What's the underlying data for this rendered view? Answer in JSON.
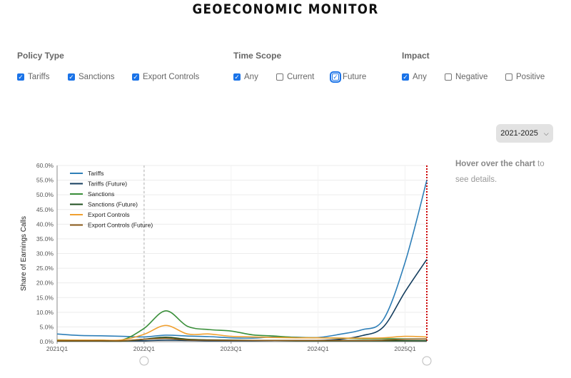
{
  "header": {
    "title": "GEOECONOMIC MONITOR"
  },
  "filters": {
    "policy_type": {
      "heading": "Policy Type",
      "options": [
        {
          "label": "Tariffs",
          "checked": true
        },
        {
          "label": "Sanctions",
          "checked": true
        },
        {
          "label": "Export Controls",
          "checked": true
        }
      ]
    },
    "time_scope": {
      "heading": "Time Scope",
      "options": [
        {
          "label": "Any",
          "checked": true
        },
        {
          "label": "Current",
          "checked": false
        },
        {
          "label": "Future",
          "checked": true
        }
      ]
    },
    "impact": {
      "heading": "Impact",
      "options": [
        {
          "label": "Any",
          "checked": true
        },
        {
          "label": "Negative",
          "checked": false
        },
        {
          "label": "Positive",
          "checked": false
        }
      ]
    }
  },
  "range_select": {
    "value": "2021-2025",
    "icon": "chevron-down-icon"
  },
  "hover_note": {
    "bold": "Hover over the chart",
    "rest": " to see details."
  },
  "chart_data": {
    "type": "line",
    "ylabel": "Share of Earnings Calls",
    "xlabel": "",
    "ylim": [
      0,
      60
    ],
    "y_ticks": [
      "0.0%",
      "5.0%",
      "10.0%",
      "15.0%",
      "20.0%",
      "25.0%",
      "30.0%",
      "35.0%",
      "40.0%",
      "45.0%",
      "50.0%",
      "55.0%",
      "60.0%"
    ],
    "x_ticks": [
      "2021Q1",
      "2022Q1",
      "2023Q1",
      "2024Q1",
      "2025Q1"
    ],
    "x_range": [
      "2021Q1",
      "2025Q2"
    ],
    "grid": true,
    "legend_position": "top-left",
    "reference_lines": [
      {
        "x": "2022Q1",
        "style": "dashed",
        "color": "#bbbbbb"
      },
      {
        "x": "2025Q2",
        "style": "dotted",
        "color": "#cc0000"
      }
    ],
    "series": [
      {
        "name": "Tariffs",
        "color": "#2e7fb8",
        "points": [
          [
            "2021Q1",
            2.6
          ],
          [
            "2021Q2",
            2.1
          ],
          [
            "2021Q3",
            2.0
          ],
          [
            "2021Q4",
            1.8
          ],
          [
            "2022Q1",
            1.6
          ],
          [
            "2022Q2",
            2.2
          ],
          [
            "2022Q3",
            1.9
          ],
          [
            "2022Q4",
            1.7
          ],
          [
            "2023Q1",
            1.3
          ],
          [
            "2023Q2",
            1.2
          ],
          [
            "2023Q3",
            1.6
          ],
          [
            "2023Q4",
            1.5
          ],
          [
            "2024Q1",
            1.4
          ],
          [
            "2024Q2",
            2.5
          ],
          [
            "2024Q3",
            4.0
          ],
          [
            "2024Q4",
            7.5
          ],
          [
            "2025Q1",
            27.0
          ],
          [
            "2025Q2",
            55.0
          ]
        ]
      },
      {
        "name": "Tariffs (Future)",
        "color": "#143d5e",
        "points": [
          [
            "2021Q1",
            0.4
          ],
          [
            "2021Q2",
            0.3
          ],
          [
            "2021Q3",
            0.3
          ],
          [
            "2021Q4",
            0.3
          ],
          [
            "2022Q1",
            0.3
          ],
          [
            "2022Q2",
            0.5
          ],
          [
            "2022Q3",
            0.4
          ],
          [
            "2022Q4",
            0.3
          ],
          [
            "2023Q1",
            0.3
          ],
          [
            "2023Q2",
            0.3
          ],
          [
            "2023Q3",
            0.4
          ],
          [
            "2023Q4",
            0.4
          ],
          [
            "2024Q1",
            0.4
          ],
          [
            "2024Q2",
            0.8
          ],
          [
            "2024Q3",
            2.0
          ],
          [
            "2024Q4",
            5.0
          ],
          [
            "2025Q1",
            17.0
          ],
          [
            "2025Q2",
            28.0
          ]
        ]
      },
      {
        "name": "Sanctions",
        "color": "#3a8f3a",
        "points": [
          [
            "2021Q1",
            0.6
          ],
          [
            "2021Q2",
            0.5
          ],
          [
            "2021Q3",
            0.5
          ],
          [
            "2021Q4",
            0.6
          ],
          [
            "2022Q1",
            4.5
          ],
          [
            "2022Q2",
            10.5
          ],
          [
            "2022Q3",
            5.2
          ],
          [
            "2022Q4",
            4.1
          ],
          [
            "2023Q1",
            3.6
          ],
          [
            "2023Q2",
            2.3
          ],
          [
            "2023Q3",
            1.9
          ],
          [
            "2023Q4",
            1.4
          ],
          [
            "2024Q1",
            1.3
          ],
          [
            "2024Q2",
            1.2
          ],
          [
            "2024Q3",
            1.0
          ],
          [
            "2024Q4",
            1.0
          ],
          [
            "2025Q1",
            0.9
          ],
          [
            "2025Q2",
            0.9
          ]
        ]
      },
      {
        "name": "Sanctions (Future)",
        "color": "#1e4d1e",
        "points": [
          [
            "2021Q1",
            0.2
          ],
          [
            "2021Q2",
            0.2
          ],
          [
            "2021Q3",
            0.2
          ],
          [
            "2021Q4",
            0.2
          ],
          [
            "2022Q1",
            0.8
          ],
          [
            "2022Q2",
            1.5
          ],
          [
            "2022Q3",
            0.8
          ],
          [
            "2022Q4",
            0.6
          ],
          [
            "2023Q1",
            0.5
          ],
          [
            "2023Q2",
            0.4
          ],
          [
            "2023Q3",
            0.4
          ],
          [
            "2023Q4",
            0.3
          ],
          [
            "2024Q1",
            0.3
          ],
          [
            "2024Q2",
            0.3
          ],
          [
            "2024Q3",
            0.3
          ],
          [
            "2024Q4",
            0.3
          ],
          [
            "2025Q1",
            0.3
          ],
          [
            "2025Q2",
            0.3
          ]
        ]
      },
      {
        "name": "Export Controls",
        "color": "#f0a030",
        "points": [
          [
            "2021Q1",
            0.5
          ],
          [
            "2021Q2",
            0.5
          ],
          [
            "2021Q3",
            0.5
          ],
          [
            "2021Q4",
            0.6
          ],
          [
            "2022Q1",
            2.5
          ],
          [
            "2022Q2",
            5.5
          ],
          [
            "2022Q3",
            2.6
          ],
          [
            "2022Q4",
            2.6
          ],
          [
            "2023Q1",
            1.8
          ],
          [
            "2023Q2",
            1.6
          ],
          [
            "2023Q3",
            1.4
          ],
          [
            "2023Q4",
            1.3
          ],
          [
            "2024Q1",
            1.3
          ],
          [
            "2024Q2",
            1.2
          ],
          [
            "2024Q3",
            1.2
          ],
          [
            "2024Q4",
            1.3
          ],
          [
            "2025Q1",
            1.8
          ],
          [
            "2025Q2",
            1.6
          ]
        ]
      },
      {
        "name": "Export Controls (Future)",
        "color": "#8a5a1a",
        "points": [
          [
            "2021Q1",
            0.3
          ],
          [
            "2021Q2",
            0.3
          ],
          [
            "2021Q3",
            0.3
          ],
          [
            "2021Q4",
            0.3
          ],
          [
            "2022Q1",
            0.8
          ],
          [
            "2022Q2",
            1.1
          ],
          [
            "2022Q3",
            0.6
          ],
          [
            "2022Q4",
            0.5
          ],
          [
            "2023Q1",
            0.4
          ],
          [
            "2023Q2",
            0.4
          ],
          [
            "2023Q3",
            0.4
          ],
          [
            "2023Q4",
            0.4
          ],
          [
            "2024Q1",
            0.4
          ],
          [
            "2024Q2",
            0.4
          ],
          [
            "2024Q3",
            0.4
          ],
          [
            "2024Q4",
            0.5
          ],
          [
            "2025Q1",
            0.8
          ],
          [
            "2025Q2",
            0.9
          ]
        ]
      }
    ]
  }
}
